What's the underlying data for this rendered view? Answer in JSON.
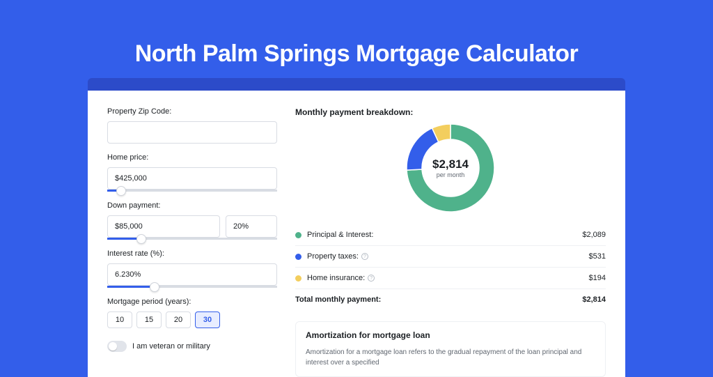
{
  "page": {
    "title": "North Palm Springs Mortgage Calculator",
    "background_color": "#335eea",
    "card_header_color": "#2c4bc9"
  },
  "form": {
    "zip": {
      "label": "Property Zip Code:",
      "value": ""
    },
    "home_price": {
      "label": "Home price:",
      "value": "$425,000",
      "slider_pct": 8
    },
    "down_payment": {
      "label": "Down payment:",
      "amount": "$85,000",
      "pct": "20%",
      "slider_pct": 20
    },
    "interest_rate": {
      "label": "Interest rate (%):",
      "value": "6.230%",
      "slider_pct": 28
    },
    "mortgage_period": {
      "label": "Mortgage period (years):",
      "options": [
        "10",
        "15",
        "20",
        "30"
      ],
      "selected": "30"
    },
    "veteran": {
      "label": "I am veteran or military",
      "checked": false
    }
  },
  "breakdown": {
    "title": "Monthly payment breakdown:",
    "center_amount": "$2,814",
    "center_sub": "per month",
    "donut": {
      "type": "donut",
      "size": 126,
      "thickness": 22,
      "background_color": "#ffffff",
      "slices": [
        {
          "label": "Principal & Interest:",
          "value": "$2,089",
          "color": "#4fb28b",
          "fraction": 0.742
        },
        {
          "label": "Property taxes:",
          "value": "$531",
          "color": "#335eea",
          "fraction": 0.189,
          "info": true
        },
        {
          "label": "Home insurance:",
          "value": "$194",
          "color": "#f3ce5e",
          "fraction": 0.069,
          "info": true
        }
      ]
    },
    "total": {
      "label": "Total monthly payment:",
      "value": "$2,814"
    }
  },
  "amortization": {
    "title": "Amortization for mortgage loan",
    "body": "Amortization for a mortgage loan refers to the gradual repayment of the loan principal and interest over a specified"
  }
}
